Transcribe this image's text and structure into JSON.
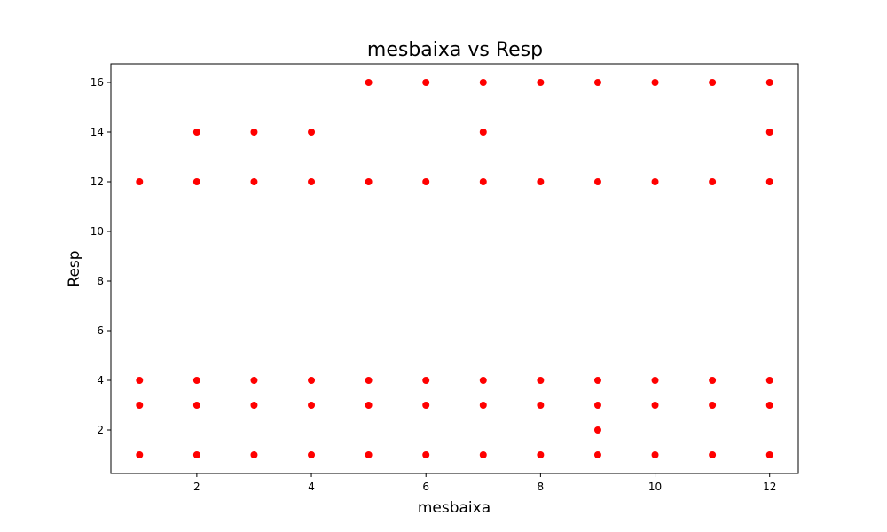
{
  "chart_data": {
    "type": "scatter",
    "title": "mesbaixa vs Resp",
    "xlabel": "mesbaixa",
    "ylabel": "Resp",
    "xlim": [
      0.5,
      12.5
    ],
    "ylim": [
      0.25,
      16.75
    ],
    "xticks": [
      2,
      4,
      6,
      8,
      10,
      12
    ],
    "yticks": [
      2,
      4,
      6,
      8,
      10,
      12,
      14,
      16
    ],
    "grid": false,
    "marker_color": "#ff0000",
    "points": [
      {
        "x": 1,
        "y": 1
      },
      {
        "x": 1,
        "y": 3
      },
      {
        "x": 1,
        "y": 4
      },
      {
        "x": 1,
        "y": 12
      },
      {
        "x": 2,
        "y": 1
      },
      {
        "x": 2,
        "y": 3
      },
      {
        "x": 2,
        "y": 4
      },
      {
        "x": 2,
        "y": 12
      },
      {
        "x": 2,
        "y": 14
      },
      {
        "x": 3,
        "y": 1
      },
      {
        "x": 3,
        "y": 3
      },
      {
        "x": 3,
        "y": 4
      },
      {
        "x": 3,
        "y": 12
      },
      {
        "x": 3,
        "y": 14
      },
      {
        "x": 4,
        "y": 1
      },
      {
        "x": 4,
        "y": 3
      },
      {
        "x": 4,
        "y": 4
      },
      {
        "x": 4,
        "y": 12
      },
      {
        "x": 4,
        "y": 14
      },
      {
        "x": 5,
        "y": 1
      },
      {
        "x": 5,
        "y": 3
      },
      {
        "x": 5,
        "y": 4
      },
      {
        "x": 5,
        "y": 12
      },
      {
        "x": 5,
        "y": 16
      },
      {
        "x": 6,
        "y": 1
      },
      {
        "x": 6,
        "y": 3
      },
      {
        "x": 6,
        "y": 4
      },
      {
        "x": 6,
        "y": 12
      },
      {
        "x": 6,
        "y": 16
      },
      {
        "x": 7,
        "y": 1
      },
      {
        "x": 7,
        "y": 3
      },
      {
        "x": 7,
        "y": 4
      },
      {
        "x": 7,
        "y": 12
      },
      {
        "x": 7,
        "y": 14
      },
      {
        "x": 7,
        "y": 16
      },
      {
        "x": 8,
        "y": 1
      },
      {
        "x": 8,
        "y": 3
      },
      {
        "x": 8,
        "y": 4
      },
      {
        "x": 8,
        "y": 12
      },
      {
        "x": 8,
        "y": 16
      },
      {
        "x": 9,
        "y": 1
      },
      {
        "x": 9,
        "y": 2
      },
      {
        "x": 9,
        "y": 3
      },
      {
        "x": 9,
        "y": 4
      },
      {
        "x": 9,
        "y": 12
      },
      {
        "x": 9,
        "y": 16
      },
      {
        "x": 10,
        "y": 1
      },
      {
        "x": 10,
        "y": 3
      },
      {
        "x": 10,
        "y": 4
      },
      {
        "x": 10,
        "y": 12
      },
      {
        "x": 10,
        "y": 16
      },
      {
        "x": 11,
        "y": 1
      },
      {
        "x": 11,
        "y": 3
      },
      {
        "x": 11,
        "y": 4
      },
      {
        "x": 11,
        "y": 12
      },
      {
        "x": 11,
        "y": 16
      },
      {
        "x": 12,
        "y": 1
      },
      {
        "x": 12,
        "y": 3
      },
      {
        "x": 12,
        "y": 4
      },
      {
        "x": 12,
        "y": 12
      },
      {
        "x": 12,
        "y": 14
      },
      {
        "x": 12,
        "y": 16
      }
    ]
  }
}
